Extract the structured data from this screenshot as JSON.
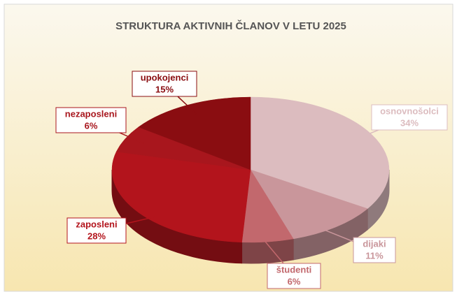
{
  "chart_data": {
    "type": "pie",
    "title": "STRUKTURA AKTIVNIH ČLANOV V LETU 2025",
    "categories": [
      "osnovnošolci",
      "dijaki",
      "študenti",
      "zaposleni",
      "nezaposleni",
      "upokojenci"
    ],
    "values": [
      34,
      11,
      6,
      28,
      6,
      15
    ],
    "value_labels": [
      "34%",
      "11%",
      "6%",
      "28%",
      "6%",
      "15%"
    ],
    "colors": [
      "#dcbcbf",
      "#c9969b",
      "#c2686d",
      "#b3141c",
      "#a8161d",
      "#8a0d11"
    ]
  }
}
